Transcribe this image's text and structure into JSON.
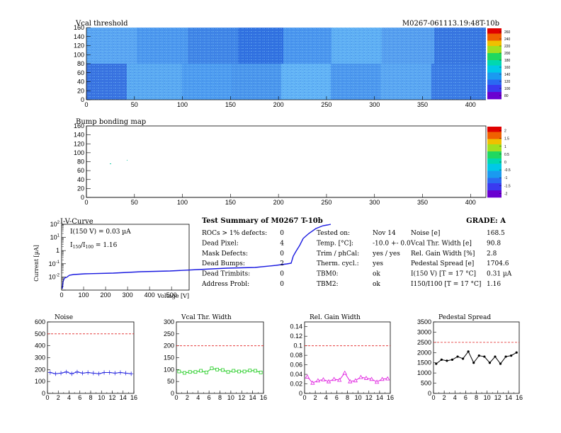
{
  "page": {
    "module_id": "M0267-061113.19:48T-10b"
  },
  "vcal_map": {
    "title": "Vcal threshold",
    "xticks": [
      "0",
      "50",
      "100",
      "150",
      "200",
      "250",
      "300",
      "350",
      "400"
    ],
    "yticks": [
      "0",
      "20",
      "40",
      "60",
      "80",
      "100",
      "120",
      "140",
      "160"
    ],
    "scale_labels": [
      "80",
      "100",
      "120",
      "140",
      "160",
      "180",
      "200",
      "220",
      "240",
      "260"
    ]
  },
  "bump_map": {
    "title": "Bump bonding map",
    "xticks": [
      "0",
      "50",
      "100",
      "150",
      "200",
      "250",
      "300",
      "350",
      "400"
    ],
    "yticks": [
      "0",
      "20",
      "40",
      "60",
      "80",
      "100",
      "120",
      "140",
      "160"
    ],
    "scale_labels": [
      "-2",
      "-1.5",
      "-1",
      "-0.5",
      "0",
      "0.5",
      "1",
      "1.5",
      "2"
    ]
  },
  "iv_curve": {
    "title": "I-V-Curve",
    "ylabel": "Current [µA]",
    "xlabel": "Voltage [V]",
    "annotation1": "I(150 V) = 0.03 µA",
    "annotation2_main": "I",
    "annotation2_sub1": "150",
    "annotation2_mid": "/I",
    "annotation2_sub2": "100",
    "annotation2_val": " = 1.16",
    "xticks": [
      "0",
      "100",
      "200",
      "300",
      "400",
      "500"
    ],
    "yticks_exp": [
      "-2",
      "-1",
      "1",
      "2"
    ]
  },
  "summary": {
    "heading": "Test Summary of M0267    T-10b",
    "grade": "GRADE:  A",
    "col1": [
      {
        "label": "ROCs > 1% defects:",
        "value": "0"
      },
      {
        "label": "Dead Pixel:",
        "value": "4"
      },
      {
        "label": "Mask Defects:",
        "value": "0"
      },
      {
        "label": "Dead Bumps:",
        "value": "2"
      },
      {
        "label": "Dead Trimbits:",
        "value": "0"
      },
      {
        "label": "Address Probl:",
        "value": "0"
      }
    ],
    "col2": [
      {
        "label": "Tested on:",
        "value": "Nov 14"
      },
      {
        "label": "Temp. [°C]:",
        "value": "-10.0 +- 0.0"
      },
      {
        "label": "Trim / phCal:",
        "value": "yes / yes"
      },
      {
        "label": "Therm. cycl.:",
        "value": "yes"
      },
      {
        "label": "TBM0:",
        "value": "ok"
      },
      {
        "label": "TBM2:",
        "value": "ok"
      }
    ],
    "col3": [
      {
        "label": "Noise [e]",
        "value": "168.5"
      },
      {
        "label": "Vcal Thr. Width [e]",
        "value": "90.8"
      },
      {
        "label": "Rel. Gain Width [%]",
        "value": "2.8"
      },
      {
        "label": "Pedestal Spread [e]",
        "value": "1704.6"
      },
      {
        "label": "I(150 V) [T = 17 °C]",
        "value": "0.31 µA"
      },
      {
        "label": "I150/I100  [T = 17 °C]",
        "value": "1.16"
      }
    ]
  },
  "chart_data": [
    {
      "type": "line",
      "title": "Noise",
      "x": [
        0,
        1,
        2,
        3,
        4,
        5,
        6,
        7,
        8,
        9,
        10,
        11,
        12,
        13,
        14,
        15
      ],
      "values": [
        175,
        165,
        170,
        180,
        165,
        180,
        170,
        175,
        170,
        165,
        175,
        175,
        170,
        175,
        170,
        165
      ],
      "ylim": [
        0,
        600
      ],
      "xlim": [
        0,
        16
      ],
      "yticks": [
        "0",
        "100",
        "200",
        "300",
        "400",
        "500",
        "600"
      ],
      "xticks": [
        "0",
        "2",
        "4",
        "6",
        "8",
        "10",
        "12",
        "14",
        "16"
      ],
      "cut": 500,
      "color": "#2a2ae0",
      "marker": "star"
    },
    {
      "type": "line",
      "title": "Vcal Thr. Width",
      "x": [
        0,
        1,
        2,
        3,
        4,
        5,
        6,
        7,
        8,
        9,
        10,
        11,
        12,
        13,
        14,
        15
      ],
      "values": [
        92,
        86,
        90,
        90,
        95,
        88,
        105,
        100,
        98,
        90,
        95,
        92,
        92,
        96,
        95,
        88
      ],
      "ylim": [
        0,
        300
      ],
      "xlim": [
        0,
        16
      ],
      "yticks": [
        "0",
        "50",
        "100",
        "150",
        "200",
        "250",
        "300"
      ],
      "xticks": [
        "0",
        "2",
        "4",
        "6",
        "8",
        "10",
        "12",
        "14",
        "16"
      ],
      "cut": 200,
      "color": "#22cc22",
      "marker": "square"
    },
    {
      "type": "line",
      "title": "Rel. Gain Width",
      "x": [
        0,
        1,
        2,
        3,
        4,
        5,
        6,
        7,
        8,
        9,
        10,
        11,
        12,
        13,
        14,
        15
      ],
      "values": [
        0.035,
        0.022,
        0.027,
        0.029,
        0.025,
        0.03,
        0.028,
        0.043,
        0.025,
        0.027,
        0.034,
        0.032,
        0.03,
        0.024,
        0.03,
        0.031
      ],
      "ylim": [
        0,
        0.15
      ],
      "xlim": [
        0,
        16
      ],
      "yticks": [
        "0",
        "0.02",
        "0.04",
        "0.06",
        "0.08",
        "0.1",
        "0.12",
        "0.14"
      ],
      "xticks": [
        "0",
        "2",
        "4",
        "6",
        "8",
        "10",
        "12",
        "14",
        "16"
      ],
      "cut": 0.1,
      "color": "#e020e0",
      "marker": "triangle"
    },
    {
      "type": "line",
      "title": "Pedestal Spread",
      "x": [
        0,
        1,
        2,
        3,
        4,
        5,
        6,
        7,
        8,
        9,
        10,
        11,
        12,
        13,
        14,
        15
      ],
      "values": [
        1450,
        1650,
        1600,
        1650,
        1800,
        1700,
        2050,
        1500,
        1850,
        1800,
        1500,
        1800,
        1450,
        1800,
        1850,
        2000
      ],
      "ylim": [
        0,
        3500
      ],
      "xlim": [
        0,
        16
      ],
      "yticks": [
        "0",
        "500",
        "1000",
        "1500",
        "2000",
        "2500",
        "3000",
        "3500"
      ],
      "xticks": [
        "0",
        "2",
        "4",
        "6",
        "8",
        "10",
        "12",
        "14",
        "16"
      ],
      "cut": 2500,
      "color": "#000000",
      "marker": "dot"
    }
  ]
}
